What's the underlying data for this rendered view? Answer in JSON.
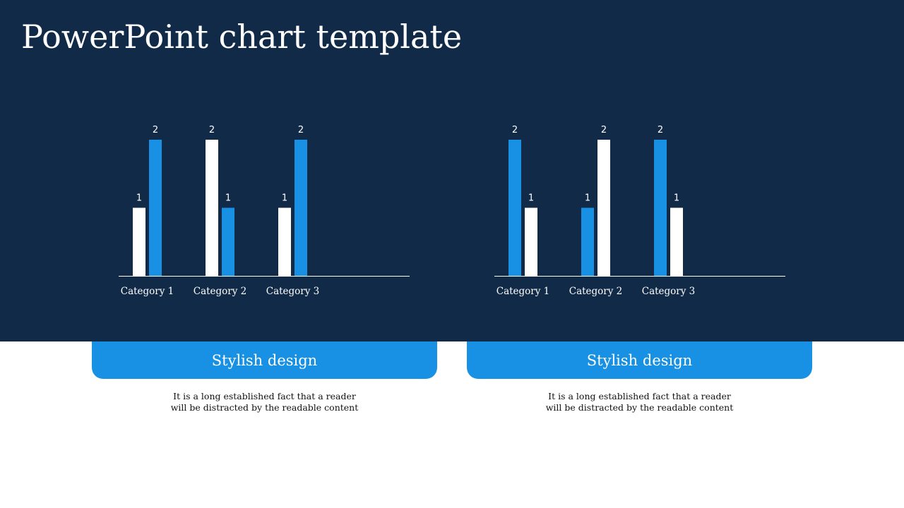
{
  "slide": {
    "title": "PowerPoint chart template"
  },
  "colors": {
    "background": "#112a47",
    "accent": "#1890e3",
    "bar_white": "#ffffff"
  },
  "cards": [
    {
      "heading": "Stylish design",
      "text_line1": "It is a long established fact that a reader",
      "text_line2": "will be distracted by the readable content"
    },
    {
      "heading": "Stylish design",
      "text_line1": "It is a long established fact that a reader",
      "text_line2": "will be distracted by the readable content"
    }
  ],
  "chart_data": [
    {
      "type": "bar",
      "categories": [
        "Category 1",
        "Category 2",
        "Category 3"
      ],
      "series": [
        {
          "color": "#ffffff",
          "values": [
            1,
            2,
            1
          ]
        },
        {
          "color": "#1890e3",
          "values": [
            2,
            1,
            2
          ]
        }
      ],
      "ylim": [
        0,
        2
      ],
      "grid": false
    },
    {
      "type": "bar",
      "categories": [
        "Category 1",
        "Category 2",
        "Category 3"
      ],
      "series": [
        {
          "color": "#1890e3",
          "values": [
            2,
            1,
            2
          ]
        },
        {
          "color": "#ffffff",
          "values": [
            1,
            2,
            1
          ]
        }
      ],
      "ylim": [
        0,
        2
      ],
      "grid": false
    }
  ]
}
